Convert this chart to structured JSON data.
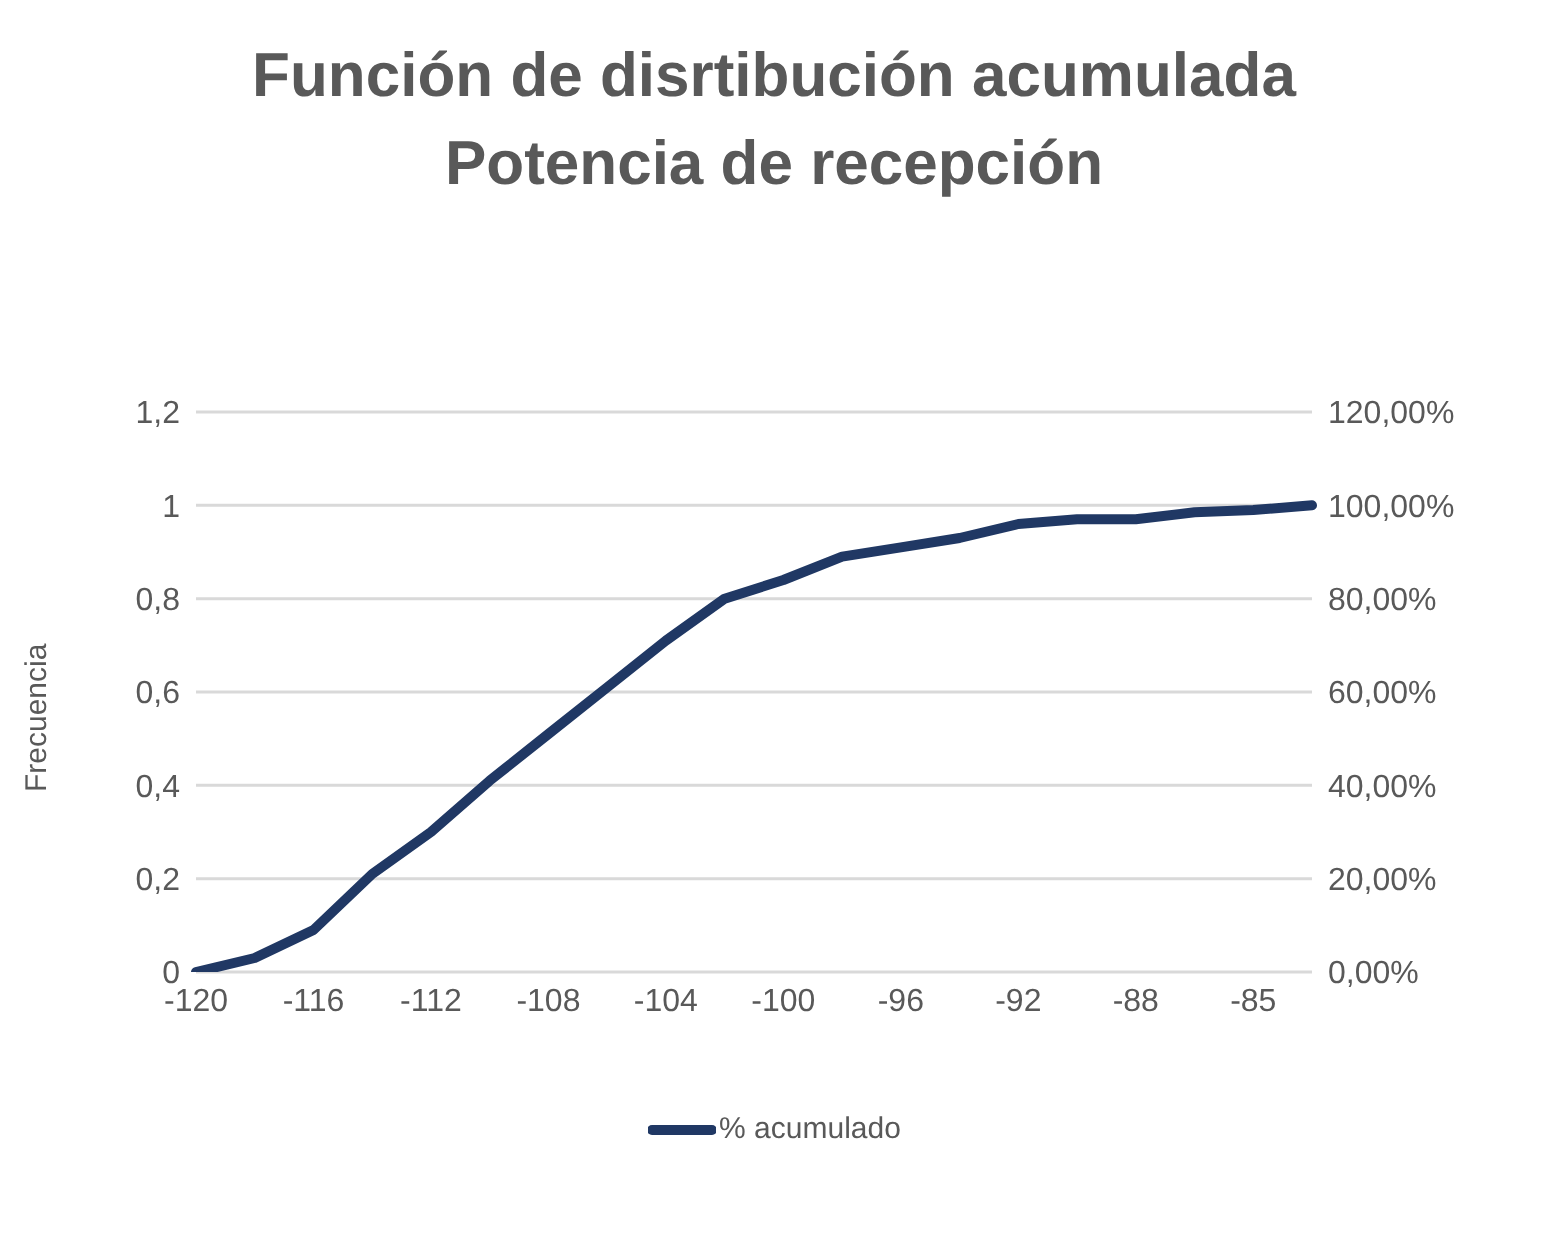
{
  "chart_data": {
    "type": "line",
    "title": "Función de disrtibución acumulada\nPotencia de recepción",
    "ylabel": "Frecuencia",
    "categories": [
      "-120",
      null,
      "-116",
      null,
      "-112",
      null,
      "-108",
      null,
      "-104",
      null,
      "-100",
      null,
      "-96",
      null,
      "-92",
      null,
      "-88",
      null,
      "-85",
      null
    ],
    "series": [
      {
        "name": "% acumulado",
        "color": "#203864",
        "axis": "y2",
        "values": [
          0,
          3,
          9,
          21,
          30,
          41,
          51,
          61,
          71,
          80,
          84,
          89,
          91,
          93,
          96,
          97,
          97,
          98.5,
          99,
          100
        ]
      }
    ],
    "ylim": [
      0,
      1.2
    ],
    "yticks": [
      0,
      {
        "value": 0.2,
        "label": "0,2"
      },
      {
        "value": 0.4,
        "label": "0,4"
      },
      {
        "value": 0.6,
        "label": "0,6"
      },
      {
        "value": 0.8,
        "label": "0,8"
      },
      1,
      {
        "value": 1.2,
        "label": "1,2"
      }
    ],
    "y2lim": [
      0,
      120
    ],
    "y2ticks": [
      {
        "value": 0,
        "label": "0,00%"
      },
      {
        "value": 20,
        "label": "20,00%"
      },
      {
        "value": 40,
        "label": "40,00%"
      },
      {
        "value": 60,
        "label": "60,00%"
      },
      {
        "value": 80,
        "label": "80,00%"
      },
      {
        "value": 100,
        "label": "100,00%"
      },
      {
        "value": 120,
        "label": "120,00%"
      }
    ],
    "grid": "y",
    "legend": "bottom",
    "marker": "none",
    "line_style": "solid"
  }
}
